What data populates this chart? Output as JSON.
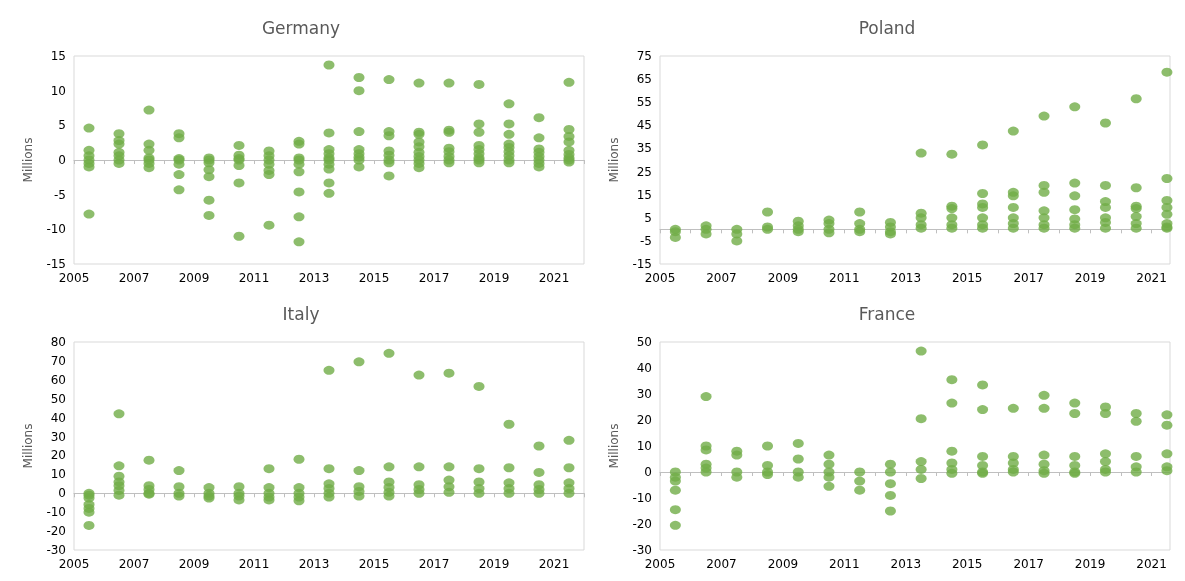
{
  "chart_data": [
    {
      "type": "scatter",
      "title": "Germany",
      "ylabel": "Millions",
      "marker": "circle",
      "xlim": [
        2005,
        2022
      ],
      "xticks": [
        2005,
        {
          "value": 2006,
          "label": null
        },
        2007,
        {
          "value": 2008,
          "label": null
        },
        2009,
        {
          "value": 2010,
          "label": null
        },
        2011,
        {
          "value": 2012,
          "label": null
        },
        2013,
        {
          "value": 2014,
          "label": null
        },
        2015,
        {
          "value": 2016,
          "label": null
        },
        2017,
        {
          "value": 2018,
          "label": null
        },
        2019,
        {
          "value": 2020,
          "label": null
        },
        2021,
        {
          "value": 2022,
          "label": null
        }
      ],
      "ylim": [
        -15,
        15
      ],
      "yticks": [
        -15,
        -10,
        -5,
        0,
        5,
        10,
        15
      ],
      "series": [
        {
          "color": "#70ad47",
          "x": [
            2005.5,
            2005.5,
            2005.5,
            2005.5,
            2005.5,
            2005.5,
            2005.5,
            2006.5,
            2006.5,
            2006.5,
            2006.5,
            2006.5,
            2006.5,
            2006.5,
            2007.5,
            2007.5,
            2007.5,
            2007.5,
            2007.5,
            2007.5,
            2007.5,
            2008.5,
            2008.5,
            2008.5,
            2008.5,
            2008.5,
            2008.5,
            2008.5,
            2009.5,
            2009.5,
            2009.5,
            2009.5,
            2009.5,
            2009.5,
            2009.5,
            2010.5,
            2010.5,
            2010.5,
            2010.5,
            2010.5,
            2010.5,
            2010.5,
            2011.5,
            2011.5,
            2011.5,
            2011.5,
            2011.5,
            2011.5,
            2011.5,
            2012.5,
            2012.5,
            2012.5,
            2012.5,
            2012.5,
            2012.5,
            2012.5,
            2012.5,
            2012.5,
            2013.5,
            2013.5,
            2013.5,
            2013.5,
            2013.5,
            2013.5,
            2013.5,
            2013.5,
            2013.5,
            2013.5,
            2014.5,
            2014.5,
            2014.5,
            2014.5,
            2014.5,
            2014.5,
            2014.5,
            2014.5,
            2015.5,
            2015.5,
            2015.5,
            2015.5,
            2015.5,
            2015.5,
            2015.5,
            2015.5,
            2016.5,
            2016.5,
            2016.5,
            2016.5,
            2016.5,
            2016.5,
            2016.5,
            2016.5,
            2016.5,
            2016.5,
            2017.5,
            2017.5,
            2017.5,
            2017.5,
            2017.5,
            2017.5,
            2017.5,
            2017.5,
            2018.5,
            2018.5,
            2018.5,
            2018.5,
            2018.5,
            2018.5,
            2018.5,
            2018.5,
            2018.5,
            2019.5,
            2019.5,
            2019.5,
            2019.5,
            2019.5,
            2019.5,
            2019.5,
            2019.5,
            2019.5,
            2020.5,
            2020.5,
            2020.5,
            2020.5,
            2020.5,
            2020.5,
            2020.5,
            2020.5,
            2021.5,
            2021.5,
            2021.5,
            2021.5,
            2021.5,
            2021.5,
            2021.5,
            2021.5,
            2021.5
          ],
          "values": [
            4.6,
            1.4,
            0.6,
            0,
            -0.5,
            -1.0,
            -7.8,
            3.8,
            2.8,
            2.3,
            1.1,
            0.6,
            0,
            -0.5,
            7.2,
            2.3,
            1.4,
            0.3,
            0,
            -0.5,
            -1.1,
            3.8,
            3.2,
            0.2,
            0,
            -0.6,
            -2.1,
            -4.3,
            0.3,
            0,
            -0.4,
            -1.4,
            -2.4,
            -5.8,
            -8.0,
            2.1,
            0.7,
            0.2,
            0,
            -0.8,
            -3.3,
            -11.0,
            1.3,
            0.6,
            0,
            -0.6,
            -1.5,
            -2.1,
            -9.4,
            2.7,
            2.3,
            0.3,
            0,
            -0.6,
            -1.7,
            -4.6,
            -8.2,
            -11.8,
            13.7,
            3.9,
            1.5,
            0.9,
            0.3,
            0,
            -0.6,
            -1.3,
            -3.3,
            -4.8,
            11.9,
            10.0,
            4.1,
            1.5,
            0.9,
            0.4,
            0,
            -1.0,
            11.6,
            4.1,
            3.5,
            1.3,
            0.7,
            0,
            -0.4,
            -2.3,
            11.1,
            4.0,
            3.7,
            2.6,
            1.9,
            1.1,
            0.5,
            0,
            -0.5,
            -1.1,
            11.1,
            4.3,
            4.0,
            1.7,
            1.2,
            0.5,
            0,
            -0.4,
            10.9,
            5.2,
            4.0,
            2.1,
            1.5,
            0.9,
            0.3,
            0,
            -0.4,
            8.1,
            5.2,
            3.7,
            2.3,
            1.8,
            1.2,
            0.6,
            0,
            -0.4,
            6.1,
            3.2,
            1.6,
            1.1,
            0.5,
            0,
            -0.5,
            -1.0,
            11.2,
            4.4,
            3.4,
            2.6,
            1.4,
            0.8,
            0.3,
            0,
            -0.3
          ]
        }
      ]
    },
    {
      "type": "scatter",
      "title": "Poland",
      "ylabel": "Millions",
      "marker": "circle",
      "xlim": [
        2005,
        2021.6
      ],
      "xticks": [
        2005,
        {
          "value": 2006,
          "label": null
        },
        2007,
        {
          "value": 2008,
          "label": null
        },
        2009,
        {
          "value": 2010,
          "label": null
        },
        2011,
        {
          "value": 2012,
          "label": null
        },
        2013,
        {
          "value": 2014,
          "label": null
        },
        2015,
        {
          "value": 2016,
          "label": null
        },
        2017,
        {
          "value": 2018,
          "label": null
        },
        2019,
        {
          "value": 2020,
          "label": null
        },
        2021
      ],
      "ylim": [
        -15,
        75
      ],
      "yticks": [
        -15,
        -5,
        5,
        15,
        25,
        35,
        45,
        55,
        65,
        75
      ],
      "series": [
        {
          "color": "#70ad47",
          "x": [
            2005.5,
            2005.5,
            2005.5,
            2006.5,
            2006.5,
            2006.5,
            2007.5,
            2007.5,
            2007.5,
            2008.5,
            2008.5,
            2008.5,
            2009.5,
            2009.5,
            2009.5,
            2009.5,
            2010.5,
            2010.5,
            2010.5,
            2010.5,
            2011.5,
            2011.5,
            2011.5,
            2011.5,
            2012.5,
            2012.5,
            2012.5,
            2012.5,
            2013.5,
            2013.5,
            2013.5,
            2013.5,
            2013.5,
            2014.5,
            2014.5,
            2014.5,
            2014.5,
            2014.5,
            2014.5,
            2015.5,
            2015.5,
            2015.5,
            2015.5,
            2015.5,
            2015.5,
            2015.5,
            2016.5,
            2016.5,
            2016.5,
            2016.5,
            2016.5,
            2016.5,
            2016.5,
            2017.5,
            2017.5,
            2017.5,
            2017.5,
            2017.5,
            2017.5,
            2017.5,
            2018.5,
            2018.5,
            2018.5,
            2018.5,
            2018.5,
            2018.5,
            2018.5,
            2019.5,
            2019.5,
            2019.5,
            2019.5,
            2019.5,
            2019.5,
            2019.5,
            2020.5,
            2020.5,
            2020.5,
            2020.5,
            2020.5,
            2020.5,
            2020.5,
            2021.5,
            2021.5,
            2021.5,
            2021.5,
            2021.5,
            2021.5,
            2021.5,
            2021.5
          ],
          "values": [
            0,
            -1,
            -3.5,
            1.5,
            0,
            -2,
            0,
            -2,
            -5,
            7.5,
            1,
            0,
            3.5,
            1.5,
            0,
            -1,
            4,
            2.5,
            0,
            -1.5,
            7.5,
            2.5,
            0,
            -1,
            3,
            1,
            -1,
            -2,
            33,
            7,
            5,
            2,
            0.5,
            32.5,
            10,
            9,
            5,
            2,
            0.5,
            36.5,
            15.5,
            11,
            9.5,
            5,
            2,
            0.5,
            42.5,
            16,
            14.5,
            9.5,
            5,
            2.5,
            0.5,
            49,
            19,
            16,
            8,
            5,
            2,
            0.5,
            53,
            20,
            14.5,
            8.5,
            4.5,
            2,
            0.5,
            46,
            19,
            12,
            9.5,
            5,
            3,
            0.5,
            56.5,
            18,
            10,
            9,
            5.5,
            2.5,
            0.5,
            68,
            22,
            12.5,
            9.5,
            6.5,
            2.5,
            1,
            0.5
          ]
        }
      ]
    },
    {
      "type": "scatter",
      "title": "Italy",
      "ylabel": "Millions",
      "marker": "circle",
      "xlim": [
        2005,
        2022
      ],
      "xticks": [
        2005,
        {
          "value": 2006,
          "label": null
        },
        2007,
        {
          "value": 2008,
          "label": null
        },
        2009,
        {
          "value": 2010,
          "label": null
        },
        2011,
        {
          "value": 2012,
          "label": null
        },
        2013,
        {
          "value": 2014,
          "label": null
        },
        2015,
        {
          "value": 2016,
          "label": null
        },
        2017,
        {
          "value": 2018,
          "label": null
        },
        2019,
        {
          "value": 2020,
          "label": null
        },
        2021,
        {
          "value": 2022,
          "label": null
        }
      ],
      "ylim": [
        -30,
        80
      ],
      "yticks": [
        -30,
        -20,
        -10,
        0,
        10,
        20,
        30,
        40,
        50,
        60,
        70,
        80
      ],
      "series": [
        {
          "color": "#70ad47",
          "x": [
            2005.5,
            2005.5,
            2005.5,
            2005.5,
            2005.5,
            2005.5,
            2005.5,
            2006.5,
            2006.5,
            2006.5,
            2006.5,
            2006.5,
            2006.5,
            2006.5,
            2007.5,
            2007.5,
            2007.5,
            2007.5,
            2007.5,
            2008.5,
            2008.5,
            2008.5,
            2008.5,
            2009.5,
            2009.5,
            2009.5,
            2009.5,
            2010.5,
            2010.5,
            2010.5,
            2010.5,
            2011.5,
            2011.5,
            2011.5,
            2011.5,
            2011.5,
            2012.5,
            2012.5,
            2012.5,
            2012.5,
            2012.5,
            2013.5,
            2013.5,
            2013.5,
            2013.5,
            2013.5,
            2013.5,
            2014.5,
            2014.5,
            2014.5,
            2014.5,
            2014.5,
            2015.5,
            2015.5,
            2015.5,
            2015.5,
            2015.5,
            2015.5,
            2016.5,
            2016.5,
            2016.5,
            2016.5,
            2016.5,
            2017.5,
            2017.5,
            2017.5,
            2017.5,
            2017.5,
            2018.5,
            2018.5,
            2018.5,
            2018.5,
            2018.5,
            2019.5,
            2019.5,
            2019.5,
            2019.5,
            2019.5,
            2020.5,
            2020.5,
            2020.5,
            2020.5,
            2020.5,
            2021.5,
            2021.5,
            2021.5,
            2021.5,
            2021.5
          ],
          "values": [
            0,
            -1,
            -2.5,
            -6,
            -8,
            -10,
            -17,
            42,
            14.5,
            9,
            6,
            4,
            1.5,
            -1,
            17.5,
            4,
            2,
            0,
            -0.5,
            12,
            3.5,
            0,
            -1.5,
            3,
            0,
            -1.5,
            -2.5,
            3.5,
            0,
            -1.5,
            -3.5,
            13,
            3,
            0,
            -2,
            -3.5,
            18,
            3,
            0,
            -2,
            -4,
            65,
            13,
            5,
            2.5,
            0,
            -2,
            69.5,
            12,
            3.5,
            1,
            -1.5,
            74,
            14,
            6,
            3,
            0.5,
            -1.5,
            62.5,
            14,
            4.5,
            2,
            0,
            63.5,
            14,
            7,
            3.5,
            0.5,
            56.5,
            13,
            6,
            2.5,
            0,
            36.5,
            13.5,
            5.5,
            2.5,
            0,
            25,
            11,
            4.5,
            2,
            0,
            28,
            13.5,
            5.5,
            2.5,
            0
          ]
        }
      ]
    },
    {
      "type": "scatter",
      "title": "France",
      "ylabel": "Millions",
      "marker": "circle",
      "xlim": [
        2005,
        2021.6
      ],
      "xticks": [
        2005,
        {
          "value": 2006,
          "label": null
        },
        2007,
        {
          "value": 2008,
          "label": null
        },
        2009,
        {
          "value": 2010,
          "label": null
        },
        2011,
        {
          "value": 2012,
          "label": null
        },
        2013,
        {
          "value": 2014,
          "label": null
        },
        2015,
        {
          "value": 2016,
          "label": null
        },
        2017,
        {
          "value": 2018,
          "label": null
        },
        2019,
        {
          "value": 2020,
          "label": null
        },
        2021
      ],
      "ylim": [
        -30,
        50
      ],
      "yticks": [
        -30,
        -20,
        -10,
        0,
        10,
        20,
        30,
        40,
        50
      ],
      "series": [
        {
          "color": "#70ad47",
          "x": [
            2005.5,
            2005.5,
            2005.5,
            2005.5,
            2005.5,
            2005.5,
            2006.5,
            2006.5,
            2006.5,
            2006.5,
            2006.5,
            2006.5,
            2007.5,
            2007.5,
            2007.5,
            2007.5,
            2008.5,
            2008.5,
            2008.5,
            2008.5,
            2009.5,
            2009.5,
            2009.5,
            2009.5,
            2010.5,
            2010.5,
            2010.5,
            2010.5,
            2010.5,
            2011.5,
            2011.5,
            2011.5,
            2012.5,
            2012.5,
            2012.5,
            2012.5,
            2012.5,
            2013.5,
            2013.5,
            2013.5,
            2013.5,
            2013.5,
            2014.5,
            2014.5,
            2014.5,
            2014.5,
            2014.5,
            2014.5,
            2015.5,
            2015.5,
            2015.5,
            2015.5,
            2015.5,
            2015.5,
            2016.5,
            2016.5,
            2016.5,
            2016.5,
            2016.5,
            2017.5,
            2017.5,
            2017.5,
            2017.5,
            2017.5,
            2017.5,
            2018.5,
            2018.5,
            2018.5,
            2018.5,
            2018.5,
            2018.5,
            2019.5,
            2019.5,
            2019.5,
            2019.5,
            2019.5,
            2019.5,
            2020.5,
            2020.5,
            2020.5,
            2020.5,
            2020.5,
            2021.5,
            2021.5,
            2021.5,
            2021.5,
            2021.5
          ],
          "values": [
            0,
            -2,
            -3.5,
            -7,
            -14.5,
            -20.5,
            29,
            10,
            8.5,
            3,
            1.5,
            0,
            8,
            6.5,
            0,
            -2,
            10,
            2.5,
            0,
            -1,
            11,
            5,
            0,
            -2,
            6.5,
            3,
            0,
            -2,
            -5.5,
            0,
            -3.5,
            -7,
            3,
            0,
            -4.5,
            -9,
            -15,
            46.5,
            20.5,
            4,
            1,
            -2.5,
            35.5,
            26.5,
            8,
            3.5,
            1,
            -0.5,
            33.5,
            24,
            6,
            2.5,
            0,
            -0.5,
            24.5,
            6,
            3.5,
            1,
            0,
            29.5,
            24.5,
            6.5,
            3,
            0.5,
            -0.5,
            26.5,
            22.5,
            6,
            2.5,
            0,
            -0.5,
            25,
            22.5,
            7,
            4,
            1,
            0,
            22.5,
            19.5,
            6,
            2,
            0,
            22,
            18,
            7,
            2,
            0.5
          ]
        }
      ]
    }
  ]
}
